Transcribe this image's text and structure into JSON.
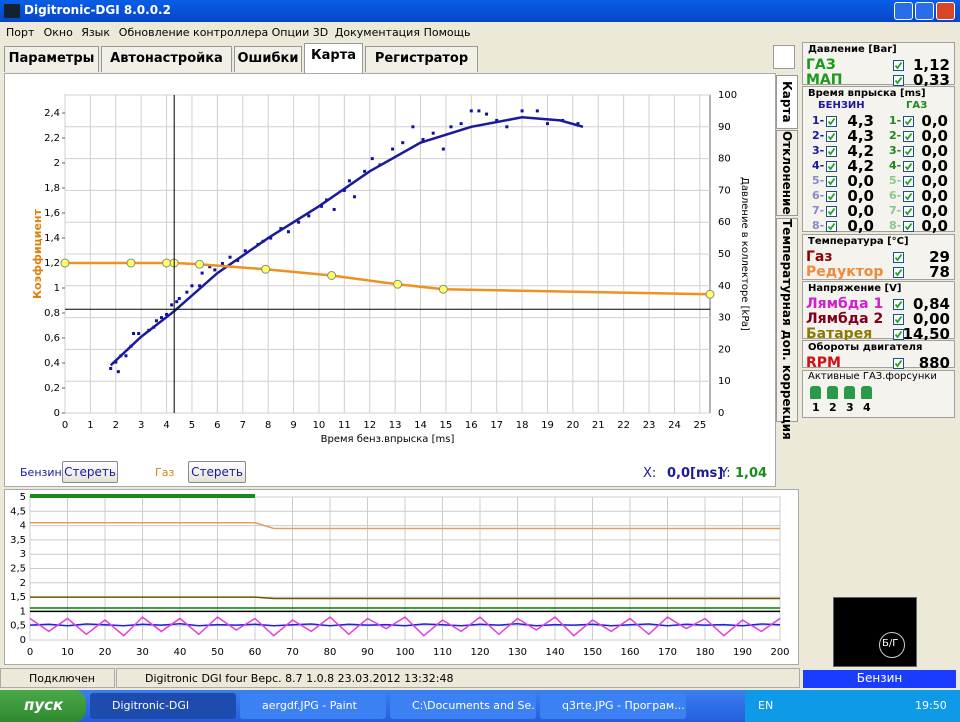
{
  "window": {
    "title": "Digitronic-DGI  8.0.0.2"
  },
  "menu": [
    "Порт",
    "Окно",
    "Язык",
    "Обновление контроллера",
    "Опции 3D",
    "Документация",
    "Помощь"
  ],
  "tabs": [
    "Параметры",
    "Автонастройка",
    "Ошибки",
    "Карта",
    "Регистратор"
  ],
  "side_tabs": [
    "Карта",
    "Отклонение",
    "Температурная доп. коррекция"
  ],
  "chart_data": [
    {
      "type": "scatter",
      "xlabel": "Время бенз.впрыска [ms]",
      "ylabel": "Коэффициент",
      "y2label": "Давление в коллекторе [kPa]",
      "xlim": [
        0,
        25.4
      ],
      "xticks": [
        0,
        1,
        2,
        3,
        4,
        5,
        6,
        7,
        8,
        9,
        10,
        11,
        12,
        13,
        14,
        15,
        16,
        17,
        18,
        19,
        20,
        21,
        22,
        23,
        24,
        25
      ],
      "ylim": [
        0,
        2.544
      ],
      "yticks": [
        0,
        {
          "value": 0.2,
          "label": "0,2"
        },
        {
          "value": 0.4,
          "label": "0,4"
        },
        {
          "value": 0.6,
          "label": "0,6"
        },
        {
          "value": 0.8,
          "label": "0,8"
        },
        1,
        {
          "value": 1.2,
          "label": "1,2"
        },
        {
          "value": 1.4,
          "label": "1,4"
        },
        {
          "value": 1.6,
          "label": "1,6"
        },
        {
          "value": 1.8,
          "label": "1,8"
        },
        2,
        {
          "value": 2.2,
          "label": "2,2"
        },
        {
          "value": 2.4,
          "label": "2,4"
        }
      ],
      "y2lim": [
        0,
        100
      ],
      "y2ticks": [
        0,
        10,
        20,
        30,
        40,
        50,
        60,
        70,
        80,
        90,
        100
      ],
      "grid": true,
      "series": [
        {
          "color": "#1010a0",
          "axis": "y2",
          "x": [
            1.8,
            2.0,
            2.1,
            2.2,
            2.4,
            2.6,
            2.7,
            2.9,
            3.3,
            3.5,
            3.6,
            3.8,
            4.0,
            4.2,
            4.4,
            4.5,
            4.8,
            5.0,
            5.3,
            5.4,
            5.7,
            5.9,
            6.2,
            6.5,
            6.8,
            7.1,
            7.6,
            7.8,
            8.1,
            8.5,
            8.8,
            9.2,
            9.6,
            10.1,
            10.3,
            10.6,
            11.0,
            11.2,
            11.4,
            11.8,
            12.1,
            12.4,
            12.9,
            13.3,
            13.7,
            14.1,
            14.5,
            14.9,
            15.2,
            15.6,
            16.0,
            16.3,
            16.6,
            17.0,
            17.4,
            18.0,
            18.6,
            19.0,
            19.6,
            20.2
          ],
          "values": [
            14,
            16,
            13,
            18,
            18,
            21,
            25,
            25,
            26,
            27,
            29,
            30,
            31,
            34,
            35,
            36,
            38,
            40,
            40,
            44,
            46,
            45,
            47,
            49,
            48,
            51,
            53,
            54,
            55,
            58,
            57,
            60,
            62,
            65,
            67,
            64,
            70,
            73,
            68,
            76,
            80,
            78,
            83,
            85,
            90,
            86,
            88,
            83,
            90,
            91,
            95,
            95,
            94,
            92,
            90,
            95,
            95,
            91,
            92,
            91
          ]
        },
        {
          "type": "line",
          "color": "#1a1a9a",
          "axis": "y2",
          "x": [
            1.8,
            3,
            4.3,
            6,
            8,
            10,
            12,
            14,
            16,
            18,
            19.5,
            20.4
          ],
          "values": [
            15,
            24,
            32,
            44,
            55,
            65,
            76,
            85,
            90,
            93,
            92,
            90
          ]
        },
        {
          "type": "line",
          "color": "#f0901e",
          "marker_color": "#ffff66",
          "x": [
            0,
            2.6,
            4.0,
            4.3,
            5.3,
            7.9,
            10.5,
            13.1,
            14.9,
            25.4
          ],
          "values": [
            1.2,
            1.2,
            1.2,
            1.2,
            1.19,
            1.15,
            1.1,
            1.03,
            0.99,
            0.95
          ]
        }
      ],
      "cursor": {
        "x": 4.3,
        "y": 0.83
      }
    },
    {
      "type": "line",
      "xlim": [
        0,
        200
      ],
      "xticks": [
        0,
        10,
        20,
        30,
        40,
        50,
        60,
        70,
        80,
        90,
        100,
        110,
        120,
        130,
        140,
        150,
        160,
        170,
        180,
        190,
        200
      ],
      "ylim": [
        0,
        5
      ],
      "yticks": [
        0,
        {
          "value": 0.5,
          "label": "0,5"
        },
        1,
        {
          "value": 1.5,
          "label": "1,5"
        },
        2,
        {
          "value": 2.5,
          "label": "2,5"
        },
        3,
        {
          "value": 3.5,
          "label": "3,5"
        },
        4,
        {
          "value": 4.5,
          "label": "4,5"
        },
        5
      ],
      "grid": true,
      "x": [
        0,
        5,
        10,
        15,
        20,
        25,
        30,
        35,
        40,
        45,
        50,
        55,
        60,
        65,
        70,
        75,
        80,
        85,
        90,
        95,
        100,
        105,
        110,
        115,
        120,
        125,
        130,
        135,
        140,
        145,
        150,
        155,
        160,
        165,
        170,
        175,
        180,
        185,
        190,
        195,
        200
      ],
      "series": [
        {
          "color": "#e0a060",
          "values": [
            4.1,
            4.1,
            4.1,
            4.1,
            4.1,
            4.1,
            4.1,
            4.1,
            4.1,
            4.1,
            4.1,
            4.1,
            4.1,
            3.9,
            3.9,
            3.9,
            3.9,
            3.9,
            3.9,
            3.9,
            3.9,
            3.9,
            3.9,
            3.9,
            3.9,
            3.9,
            3.9,
            3.9,
            3.9,
            3.9,
            3.9,
            3.9,
            3.9,
            3.9,
            3.9,
            3.9,
            3.9,
            3.9,
            3.9,
            3.9,
            3.9
          ]
        },
        {
          "color": "#6a5a00",
          "values": [
            1.5,
            1.5,
            1.5,
            1.5,
            1.5,
            1.5,
            1.5,
            1.5,
            1.5,
            1.5,
            1.5,
            1.5,
            1.5,
            1.45,
            1.45,
            1.45,
            1.45,
            1.45,
            1.45,
            1.45,
            1.45,
            1.45,
            1.45,
            1.45,
            1.45,
            1.45,
            1.45,
            1.45,
            1.45,
            1.45,
            1.45,
            1.45,
            1.45,
            1.45,
            1.45,
            1.45,
            1.45,
            1.45,
            1.45,
            1.45,
            1.45
          ]
        },
        {
          "color": "#008000",
          "values": [
            1.12,
            1.12,
            1.12,
            1.12,
            1.12,
            1.12,
            1.12,
            1.12,
            1.12,
            1.12,
            1.12,
            1.12,
            1.12,
            1.12,
            1.12,
            1.12,
            1.12,
            1.12,
            1.12,
            1.12,
            1.12,
            1.12,
            1.12,
            1.12,
            1.12,
            1.12,
            1.12,
            1.12,
            1.12,
            1.12,
            1.12,
            1.12,
            1.12,
            1.12,
            1.12,
            1.12,
            1.12,
            1.12,
            1.12,
            1.12,
            1.12
          ]
        },
        {
          "color": "#000000",
          "values": [
            1,
            1,
            1,
            1,
            1,
            1,
            1,
            1,
            1,
            1,
            1,
            1,
            1,
            1,
            1,
            1,
            1,
            1,
            1,
            1,
            1,
            1,
            1,
            1,
            1,
            1,
            1,
            1,
            1,
            1,
            1,
            1,
            1,
            1,
            1,
            1,
            1,
            1,
            1,
            1,
            1
          ]
        },
        {
          "color": "#2020e0",
          "values": [
            0.52,
            0.55,
            0.5,
            0.56,
            0.53,
            0.5,
            0.55,
            0.52,
            0.57,
            0.5,
            0.54,
            0.52,
            0.55,
            0.5,
            0.53,
            0.56,
            0.5,
            0.55,
            0.52,
            0.54,
            0.5,
            0.56,
            0.53,
            0.5,
            0.55,
            0.52,
            0.57,
            0.5,
            0.54,
            0.52,
            0.55,
            0.5,
            0.53,
            0.56,
            0.5,
            0.55,
            0.52,
            0.54,
            0.5,
            0.56,
            0.53
          ]
        },
        {
          "color": "#e040e0",
          "values": [
            0.75,
            0.3,
            0.75,
            0.2,
            0.7,
            0.15,
            0.8,
            0.3,
            0.75,
            0.2,
            0.8,
            0.35,
            0.75,
            0.15,
            0.7,
            0.3,
            0.8,
            0.2,
            0.75,
            0.4,
            0.8,
            0.15,
            0.7,
            0.3,
            0.8,
            0.2,
            0.75,
            0.35,
            0.8,
            0.15,
            0.7,
            0.3,
            0.75,
            0.2,
            0.8,
            0.4,
            0.75,
            0.15,
            0.7,
            0.3,
            0.75
          ]
        }
      ]
    }
  ],
  "legend_bar": {
    "petrol": "Бензин",
    "clear_petrol": "Стереть",
    "gas": "Газ",
    "clear_gas": "Стереть",
    "x_label": "X:",
    "x_value": "0,0[ms]",
    "y_label": "Y:",
    "y_value": "1,04"
  },
  "panel": {
    "pressure": {
      "title": "Давление [Bar]",
      "rows": [
        {
          "label": "ГАЗ",
          "value": "1,12"
        },
        {
          "label": "МАП",
          "value": "0,33"
        }
      ]
    },
    "injection": {
      "title": "Время впрыска [ms]",
      "petrol_header": "БЕНЗИН",
      "gas_header": "ГАЗ",
      "petrol": [
        {
          "label": "1-",
          "value": "4,3"
        },
        {
          "label": "2-",
          "value": "4,3"
        },
        {
          "label": "3-",
          "value": "4,2"
        },
        {
          "label": "4-",
          "value": "4,2"
        },
        {
          "label": "5-",
          "value": "0,0"
        },
        {
          "label": "6-",
          "value": "0,0"
        },
        {
          "label": "7-",
          "value": "0,0"
        },
        {
          "label": "8-",
          "value": "0,0"
        }
      ],
      "gas": [
        {
          "label": "1-",
          "value": "0,0"
        },
        {
          "label": "2-",
          "value": "0,0"
        },
        {
          "label": "3-",
          "value": "0,0"
        },
        {
          "label": "4-",
          "value": "0,0"
        },
        {
          "label": "5-",
          "value": "0,0"
        },
        {
          "label": "6-",
          "value": "0,0"
        },
        {
          "label": "7-",
          "value": "0,0"
        },
        {
          "label": "8-",
          "value": "0,0"
        }
      ]
    },
    "temperature": {
      "title": "Температура [°C]",
      "rows": [
        {
          "label": "Газ",
          "value": "29"
        },
        {
          "label": "Редуктор",
          "value": "78"
        }
      ]
    },
    "voltage": {
      "title": "Напряжение [V]",
      "rows": [
        {
          "label": "Лямбда 1",
          "value": "0,84"
        },
        {
          "label": "Лямбда 2",
          "value": "0,00"
        },
        {
          "label": "Батарея",
          "value": "14,50"
        }
      ]
    },
    "rpm": {
      "title": "Обороты двигателя",
      "rows": [
        {
          "label": "RPM",
          "value": "880"
        }
      ]
    },
    "injectors": {
      "title": "Активные ГАЗ.форсунки",
      "labels": [
        "1",
        "2",
        "3",
        "4"
      ]
    },
    "switch_label": "Б/Г",
    "mode": "Бензин"
  },
  "status": [
    "Подключен",
    "Digitronic DGI four  Верс. 8.7 1.0.8  23.03.2012 13:32:48"
  ],
  "taskbar": {
    "start": "пуск",
    "items": [
      "Digitronic-DGI",
      "aergdf.JPG - Paint",
      "C:\\Documents and Se...",
      "q3rte.JPG - Програм..."
    ],
    "lang": "EN",
    "clock": "19:50"
  }
}
